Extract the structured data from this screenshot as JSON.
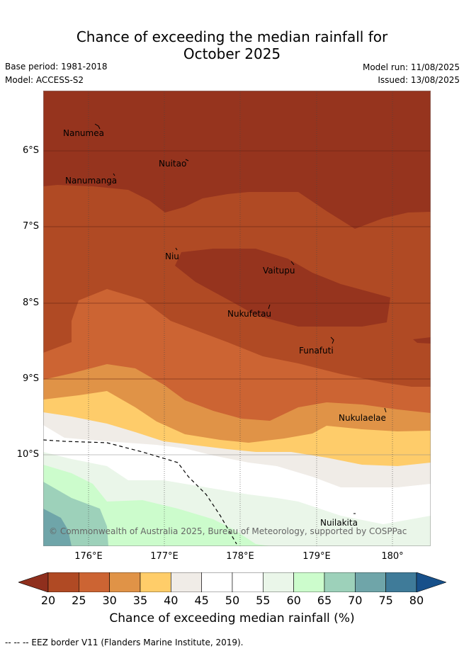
{
  "title": {
    "line1": "Chance of exceeding the median rainfall for",
    "line2": "October 2025"
  },
  "meta": {
    "base_period": "Base period: 1981-2018",
    "model": "Model: ACCESS-S2",
    "model_run": "Model run: 11/08/2025",
    "issued": "Issued: 13/08/2025"
  },
  "map": {
    "lat_labels": [
      "6°S",
      "7°S",
      "8°S",
      "9°S",
      "10°S"
    ],
    "lon_labels": [
      "176°E",
      "177°E",
      "178°E",
      "179°E",
      "180°"
    ],
    "places": [
      "Nanumea",
      "Nuitao",
      "Nanumanga",
      "Niu",
      "Vaitupu",
      "Nukufetau",
      "Funafuti",
      "Nukulaelae",
      "Nuilakita"
    ],
    "copyright": "© Commonwealth of Australia 2025, Bureau of Meteorology, supported by COSPPac",
    "eez_line": "dashed black"
  },
  "colorbar": {
    "ticks": [
      "20",
      "25",
      "30",
      "35",
      "40",
      "45",
      "50",
      "55",
      "60",
      "65",
      "70",
      "75",
      "80"
    ],
    "colors": [
      "#8f2f1d",
      "#b04a24",
      "#cc6433",
      "#e09347",
      "#ffcd69",
      "#f0ece7",
      "#ffffff",
      "#ffffff",
      "#eaf6e9",
      "#ccfccc",
      "#9dd1ba",
      "#6fa5a9",
      "#3f7b99",
      "#17508a"
    ],
    "title": "Chance of exceeding median rainfall (%)"
  },
  "footer": "--  --  -- EEZ border V11 (Flanders Marine Institute, 2019)."
}
